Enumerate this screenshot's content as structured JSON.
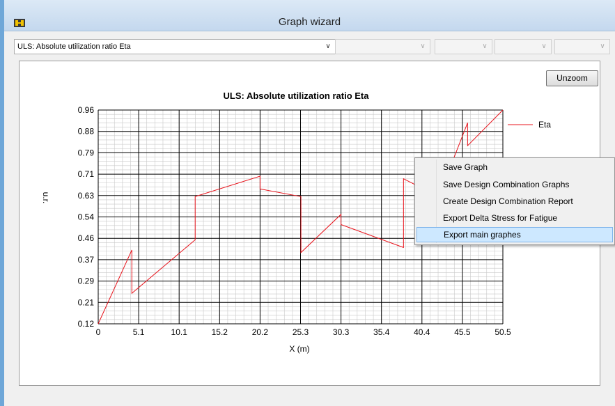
{
  "window": {
    "title": "Graph wizard"
  },
  "toolbar": {
    "selected_graph": "ULS: Absolute utilization ratio Eta",
    "disabled_combos": [
      "",
      "",
      "",
      ""
    ]
  },
  "buttons": {
    "unzoom": "Unzoom"
  },
  "colors": {
    "series": "#e8141c",
    "grid_major": "#000000",
    "grid_minor": "#c8c8c8"
  },
  "chart_data": {
    "type": "line",
    "title": "ULS: Absolute utilization ratio Eta",
    "xlabel": "X (m)",
    "ylabel": "u.r.",
    "x_ticks": [
      "0",
      "5.1",
      "10.1",
      "15.2",
      "20.2",
      "25.3",
      "30.3",
      "35.4",
      "40.4",
      "45.5",
      "50.5"
    ],
    "y_ticks": [
      "0.12",
      "0.21",
      "0.29",
      "0.37",
      "0.46",
      "0.54",
      "0.63",
      "0.71",
      "0.79",
      "0.88",
      "0.96"
    ],
    "xlim": [
      0,
      50.5
    ],
    "ylim": [
      0.12,
      0.96
    ],
    "grid": true,
    "legend_position": "right",
    "series": [
      {
        "name": "Eta",
        "x": [
          0,
          4.2,
          4.2,
          12.1,
          12.1,
          20.2,
          20.2,
          25.3,
          25.3,
          30.3,
          30.3,
          38.1,
          38.1,
          42.5,
          46.1,
          46.1,
          50.5
        ],
        "y": [
          0.12,
          0.41,
          0.24,
          0.45,
          0.62,
          0.7,
          0.65,
          0.62,
          0.4,
          0.55,
          0.51,
          0.42,
          0.69,
          0.62,
          0.91,
          0.82,
          0.96
        ]
      }
    ]
  },
  "context_menu": {
    "items": [
      {
        "label": "Save Graph"
      },
      {
        "label": "Save Design Combination Graphs"
      },
      {
        "label": "Create Design Combination Report"
      },
      {
        "label": "Export Delta Stress for Fatigue"
      },
      {
        "label": "Export main graphes",
        "highlighted": true
      }
    ]
  }
}
